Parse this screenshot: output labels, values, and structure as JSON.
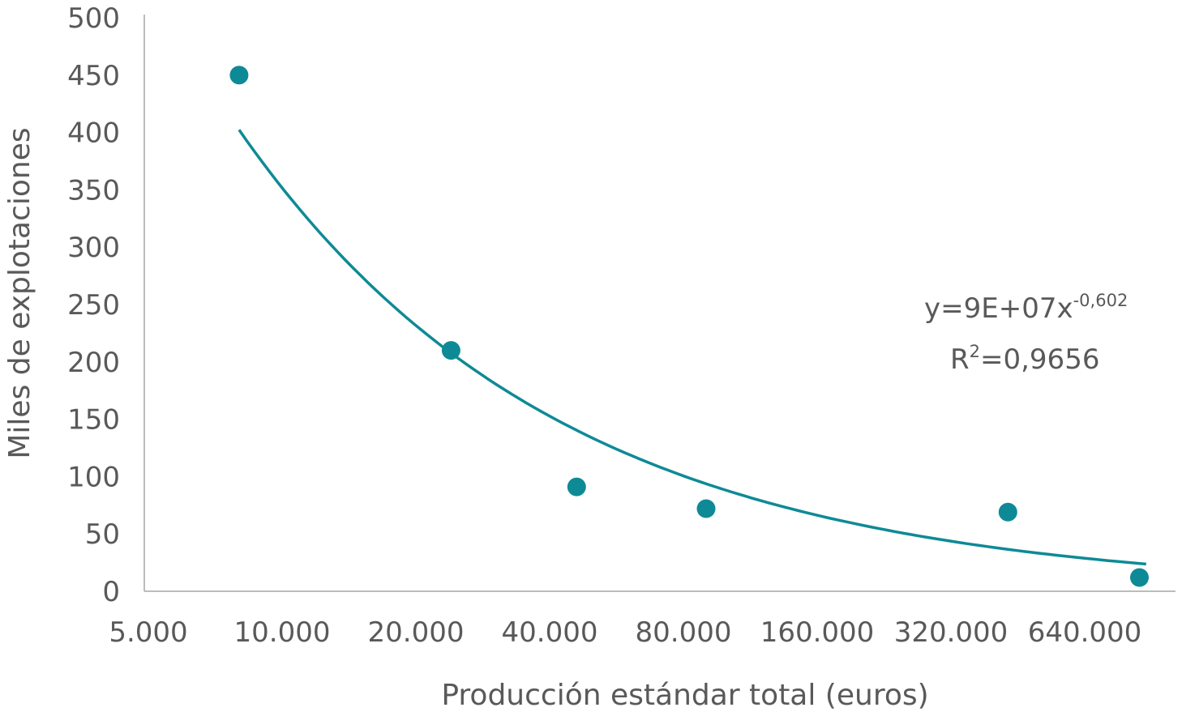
{
  "chart_data": {
    "type": "scatter",
    "title": "",
    "xlabel": "Producción estándar total (euros)",
    "ylabel": "Miles de explotaciones",
    "x_scale": "log2",
    "xlim": [
      5000,
      1000000
    ],
    "ylim": [
      0,
      500
    ],
    "xticks": [
      5000,
      10000,
      20000,
      40000,
      80000,
      160000,
      320000,
      640000
    ],
    "xtick_labels": [
      "5.000",
      "10.000",
      "20.000",
      "40.000",
      "80.000",
      "160.000",
      "320.000",
      "640.000"
    ],
    "yticks": [
      0,
      50,
      100,
      150,
      200,
      250,
      300,
      350,
      400,
      450,
      500
    ],
    "ytick_labels": [
      "0",
      "50",
      "100",
      "150",
      "200",
      "250",
      "300",
      "350",
      "400",
      "450",
      "500"
    ],
    "grid": false,
    "legend": "none",
    "series": [
      {
        "x": [
          8000,
          24000,
          46000,
          90000,
          430000,
          850000
        ],
        "y": [
          450,
          210,
          91,
          72,
          69,
          12
        ]
      }
    ],
    "trendline": {
      "type": "power",
      "coefficient": 90000000,
      "exponent": -0.602,
      "x_range": [
        8000,
        880000
      ]
    },
    "annotation": {
      "equation_text": "y=9E+07x",
      "equation_exponent": "-0,602",
      "r_prefix": "R",
      "r_superscript": "2",
      "r_value": "=0,9656"
    },
    "colors": {
      "series": "#0E8A96",
      "axis": "#A6A6A6",
      "text": "#595959"
    }
  }
}
